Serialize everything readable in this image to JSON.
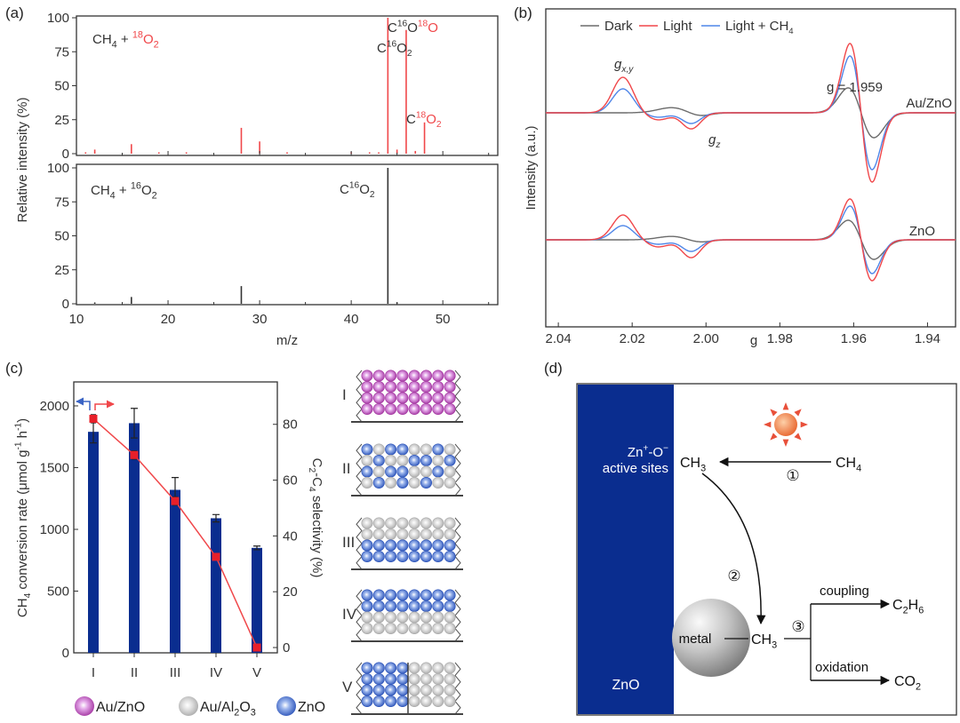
{
  "panels": {
    "a": "(a)",
    "b": "(b)",
    "c": "(c)",
    "d": "(d)"
  },
  "chart_data": [
    {
      "id": "a",
      "type": "bar",
      "subtype": "mass-spectrum-sticks",
      "xlabel": "m/z",
      "ylabel": "Relative intensity (%)",
      "xlim": [
        10,
        56
      ],
      "ylim": [
        0,
        100
      ],
      "xticks": [
        "10",
        "20",
        "30",
        "40",
        "50"
      ],
      "yticks": [
        "0",
        "25",
        "50",
        "75",
        "100"
      ],
      "series": [
        {
          "name": "CH_{4} + [r]^{18}O_{2}[/r]",
          "color": "#f0474a",
          "points": [
            [
              11,
              1
            ],
            [
              12,
              3
            ],
            [
              16,
              7
            ],
            [
              19,
              1
            ],
            [
              22,
              1
            ],
            [
              28,
              19
            ],
            [
              30,
              9
            ],
            [
              33,
              1
            ],
            [
              40,
              1
            ],
            [
              42,
              1
            ],
            [
              43,
              1
            ],
            [
              44,
              100
            ],
            [
              45,
              3
            ],
            [
              46,
              91
            ],
            [
              47,
              2
            ],
            [
              48,
              23
            ]
          ],
          "annotations": [
            {
              "text": "C^{16}O_{2}",
              "mz": 44
            },
            {
              "text": "C^{16}O[r]^{18}O[/r]",
              "mz": 46
            },
            {
              "text": "C[r]^{18}O_{2}[/r]",
              "mz": 48
            }
          ]
        },
        {
          "name": "CH_{4} + ^{16}O_{2}",
          "color": "#333333",
          "points": [
            [
              12,
              1
            ],
            [
              16,
              5
            ],
            [
              28,
              13
            ],
            [
              44,
              100
            ],
            [
              45,
              1
            ]
          ],
          "annotations": [
            {
              "text": "C^{16}O_{2}",
              "mz": 44
            }
          ]
        }
      ]
    },
    {
      "id": "b",
      "type": "line",
      "subtype": "EPR spectra",
      "xlabel": "g",
      "ylabel": "Intensity (a.u.)",
      "xlim": [
        2.0434,
        1.9324
      ],
      "ylim": [
        -98,
        260
      ],
      "xticks": [
        "2.04",
        "2.02",
        "2.00",
        "1.98",
        "1.96",
        "1.94"
      ],
      "legend": {
        "position": "top",
        "entries": [
          "Dark",
          "Light",
          "Light + CH_{4}"
        ]
      },
      "annotations": {
        "gxy": "g_{x,y}",
        "gz": "g_{z}",
        "gval": "g = 1.959",
        "sample1": "Au/ZnO",
        "sample2": "ZnO"
      },
      "series": [
        {
          "name": "Dark",
          "sample": "Au/ZnO",
          "color": "#6b6b6b",
          "offset": 143,
          "components": [
            {
              "kind": "gauss",
              "g": 2.009,
              "w": 0.004,
              "amp": 6
            },
            {
              "kind": "gauss",
              "g": 2.002,
              "w": 0.003,
              "amp": -4
            },
            {
              "kind": "deriv",
              "g": 1.958,
              "w": 0.0035,
              "amp": 28
            }
          ]
        },
        {
          "name": "Light",
          "sample": "Au/ZnO",
          "color": "#f0474a",
          "offset": 143,
          "components": [
            {
              "kind": "gauss",
              "g": 2.0225,
              "w": 0.0028,
              "amp": 40
            },
            {
              "kind": "gauss",
              "g": 2.013,
              "w": 0.003,
              "amp": -8
            },
            {
              "kind": "gauss",
              "g": 2.004,
              "w": 0.0025,
              "amp": -18
            },
            {
              "kind": "deriv",
              "g": 1.958,
              "w": 0.003,
              "amp": 78
            }
          ]
        },
        {
          "name": "Light + CH4",
          "sample": "Au/ZnO",
          "color": "#4f86e8",
          "offset": 143,
          "components": [
            {
              "kind": "gauss",
              "g": 2.0225,
              "w": 0.0028,
              "amp": 27
            },
            {
              "kind": "gauss",
              "g": 2.013,
              "w": 0.003,
              "amp": -5
            },
            {
              "kind": "gauss",
              "g": 2.004,
              "w": 0.0025,
              "amp": -12
            },
            {
              "kind": "deriv",
              "g": 1.958,
              "w": 0.003,
              "amp": 64
            }
          ]
        },
        {
          "name": "Dark",
          "sample": "ZnO",
          "color": "#6b6b6b",
          "offset": 0,
          "components": [
            {
              "kind": "gauss",
              "g": 2.009,
              "w": 0.004,
              "amp": 4
            },
            {
              "kind": "gauss",
              "g": 2.002,
              "w": 0.003,
              "amp": -3
            },
            {
              "kind": "deriv",
              "g": 1.958,
              "w": 0.0035,
              "amp": 22
            }
          ]
        },
        {
          "name": "Light",
          "sample": "ZnO",
          "color": "#f0474a",
          "offset": 0,
          "components": [
            {
              "kind": "gauss",
              "g": 2.0225,
              "w": 0.0028,
              "amp": 28
            },
            {
              "kind": "gauss",
              "g": 2.013,
              "w": 0.003,
              "amp": -8
            },
            {
              "kind": "gauss",
              "g": 2.004,
              "w": 0.0025,
              "amp": -20
            },
            {
              "kind": "deriv",
              "g": 1.958,
              "w": 0.003,
              "amp": 46
            }
          ]
        },
        {
          "name": "Light + CH4",
          "sample": "ZnO",
          "color": "#4f86e8",
          "offset": 0,
          "components": [
            {
              "kind": "gauss",
              "g": 2.0225,
              "w": 0.0028,
              "amp": 16
            },
            {
              "kind": "gauss",
              "g": 2.013,
              "w": 0.003,
              "amp": -5
            },
            {
              "kind": "gauss",
              "g": 2.004,
              "w": 0.0025,
              "amp": -13
            },
            {
              "kind": "deriv",
              "g": 1.958,
              "w": 0.003,
              "amp": 38
            }
          ]
        }
      ]
    },
    {
      "id": "c",
      "type": "bar",
      "categories": [
        "I",
        "II",
        "III",
        "IV",
        "V"
      ],
      "ylabel": "CH_{4} conversion rate (μmol g^{-1} h^{-1})",
      "y2label": "C_{2}-C_{4} selectivity (%)",
      "ylim": [
        0,
        2194
      ],
      "y2lim": [
        -1.9,
        95.2
      ],
      "yticks": [
        0,
        500,
        1000,
        1500,
        2000
      ],
      "y2ticks": [
        0,
        20,
        40,
        60,
        80
      ],
      "series": [
        {
          "name": "CH4 conversion rate",
          "axis": "left",
          "type": "bar",
          "color": "#0a2d8f",
          "values": [
            1790,
            1860,
            1320,
            1090,
            850
          ],
          "errors": [
            90,
            120,
            100,
            30,
            15
          ]
        },
        {
          "name": "C2-C4 selectivity",
          "axis": "right",
          "type": "line",
          "color": "#f0474a",
          "values": [
            82,
            69,
            52.5,
            32.5,
            0
          ],
          "errors": [
            1.5,
            1.5,
            1.5,
            1,
            0
          ]
        }
      ]
    }
  ],
  "schematic": {
    "legend": [
      {
        "label": "Au/ZnO",
        "color": "#b84fc0",
        "code": "P"
      },
      {
        "label": "Au/Al_{2}O_{3}",
        "color": "#c9c9c9",
        "code": "G"
      },
      {
        "label": "ZnO",
        "color": "#3a63c4",
        "code": "B"
      }
    ],
    "stacks": [
      {
        "label": "I",
        "rows": [
          "PPPPPPPP",
          "PPPPPPPP",
          "PPPPPPPP",
          "PPPPPPPP"
        ],
        "divider": false
      },
      {
        "label": "II",
        "rows": [
          "BGBBGGBG",
          "GBGGBBGB",
          "BGBBGGBG",
          "GBGBGBGG"
        ],
        "divider": false
      },
      {
        "label": "III",
        "rows": [
          "GGGGGGGG",
          "GGGGGGGG",
          "BBBBBBBB",
          "BBBBBBBB"
        ],
        "divider": false
      },
      {
        "label": "IV",
        "rows": [
          "BBBBBBBB",
          "BBBBBBBB",
          "GGGGGGGG",
          "GGGGGGGG"
        ],
        "divider": false
      },
      {
        "label": "V",
        "rows": [
          "BBBBGGGG",
          "BBBBGGGG",
          "BBBBGGGG",
          "BBBBGGGG"
        ],
        "divider": true
      }
    ]
  },
  "diagram": {
    "support": "ZnO",
    "sites": "Zn^{+}-O^{−}",
    "sites2": "active sites",
    "ch3_top": "CH_{3}",
    "ch4": "CH_{4}",
    "step1": "①",
    "step2": "②",
    "step3": "③",
    "metal": "metal",
    "ch3_metal": "CH_{3}",
    "coupling": "coupling",
    "c2h6": "C_{2}H_{6}",
    "oxidation": "oxidation",
    "co2": "CO_{2}",
    "colors": {
      "support": "#0a2d8f",
      "sun": "#f07a3a",
      "rays": "#e8503a"
    }
  }
}
